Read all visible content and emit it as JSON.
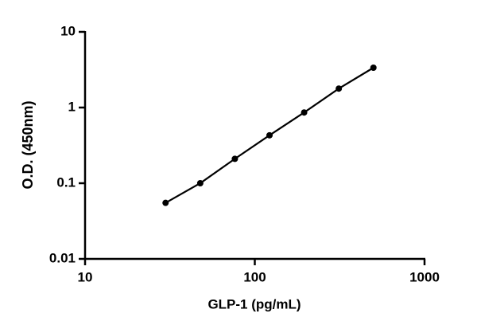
{
  "chart_data": {
    "type": "line",
    "x_label": "GLP-1 (pg/mL)",
    "y_label": "O.D. (450nm)",
    "log_x": true,
    "log_y": true,
    "xlim": [
      10,
      1000
    ],
    "xticks": [
      10,
      100,
      1000
    ],
    "ylim": [
      0.01,
      10
    ],
    "yticks": [
      0.01,
      0.1,
      1,
      10
    ],
    "x": [
      29.8,
      47.7,
      76.3,
      122.1,
      195.3,
      312.5,
      500
    ],
    "series": [
      {
        "name": "O.D.",
        "color": "#000000",
        "values": [
          0.055,
          0.1,
          0.21,
          0.43,
          0.86,
          1.78,
          3.36
        ]
      }
    ]
  }
}
